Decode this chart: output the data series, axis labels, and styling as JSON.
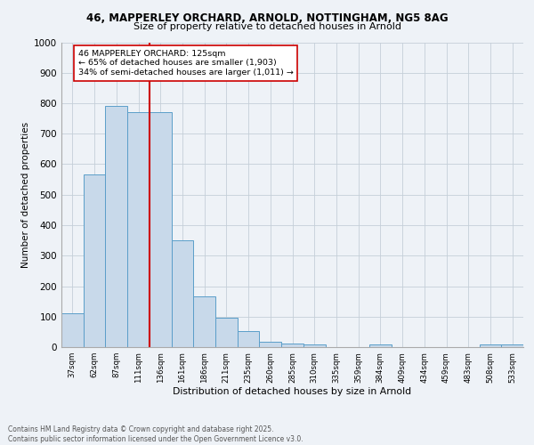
{
  "title1": "46, MAPPERLEY ORCHARD, ARNOLD, NOTTINGHAM, NG5 8AG",
  "title2": "Size of property relative to detached houses in Arnold",
  "xlabel": "Distribution of detached houses by size in Arnold",
  "ylabel": "Number of detached properties",
  "bar_labels": [
    "37sqm",
    "62sqm",
    "87sqm",
    "111sqm",
    "136sqm",
    "161sqm",
    "186sqm",
    "211sqm",
    "235sqm",
    "260sqm",
    "285sqm",
    "310sqm",
    "335sqm",
    "359sqm",
    "384sqm",
    "409sqm",
    "434sqm",
    "459sqm",
    "483sqm",
    "508sqm",
    "533sqm"
  ],
  "bar_values": [
    110,
    565,
    790,
    770,
    770,
    350,
    165,
    95,
    52,
    17,
    11,
    8,
    0,
    0,
    8,
    0,
    0,
    0,
    0,
    8,
    8
  ],
  "bar_color": "#c8d9ea",
  "bar_edge_color": "#5b9ec9",
  "vline_x": 3.5,
  "vline_color": "#cc0000",
  "annotation_text": "46 MAPPERLEY ORCHARD: 125sqm\n← 65% of detached houses are smaller (1,903)\n34% of semi-detached houses are larger (1,011) →",
  "annotation_box_color": "#ffffff",
  "annotation_box_edge": "#cc0000",
  "footer_text": "Contains HM Land Registry data © Crown copyright and database right 2025.\nContains public sector information licensed under the Open Government Licence v3.0.",
  "background_color": "#eef2f7",
  "ylim": [
    0,
    1000
  ],
  "yticks": [
    0,
    100,
    200,
    300,
    400,
    500,
    600,
    700,
    800,
    900,
    1000
  ],
  "grid_color": "#c5cfd8"
}
